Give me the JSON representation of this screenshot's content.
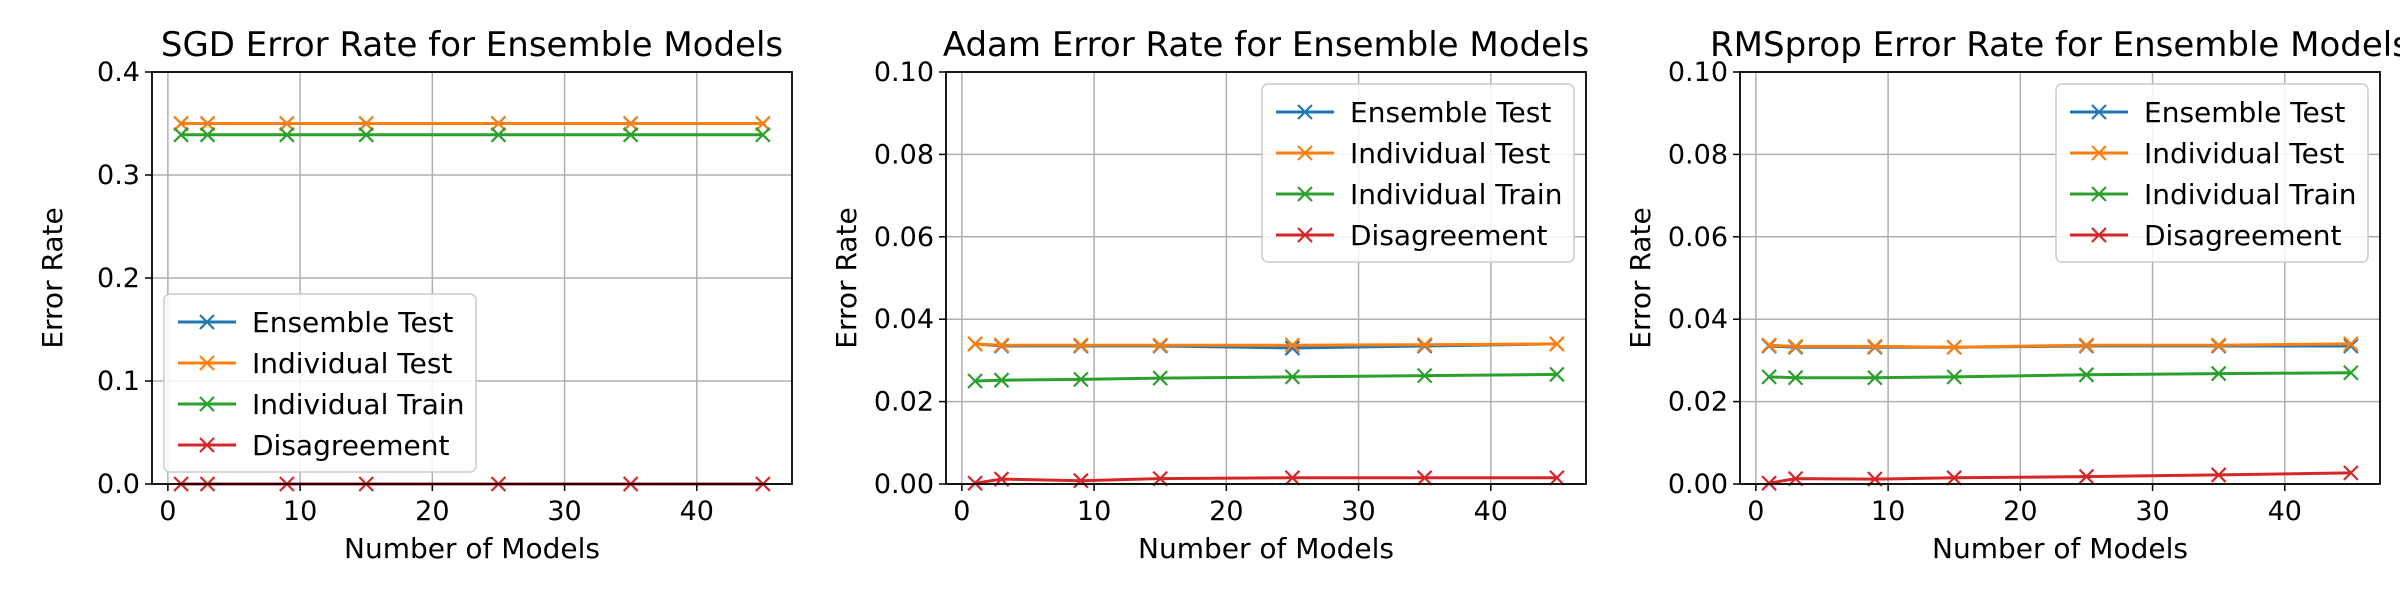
{
  "chart_data": [
    {
      "type": "line",
      "title": "SGD Error Rate for Ensemble Models",
      "xlabel": "Number of Models",
      "ylabel": "Error Rate",
      "xlim": [
        -1.2,
        47.2
      ],
      "ylim": [
        0,
        0.4
      ],
      "xticks": [
        "0",
        "10",
        "20",
        "30",
        "40"
      ],
      "yticks": [
        "0.0",
        "0.1",
        "0.2",
        "0.3",
        "0.4"
      ],
      "grid": true,
      "legend_position": "lower-left",
      "x": [
        1,
        3,
        9,
        15,
        25,
        35,
        45
      ],
      "series": [
        {
          "name": "Ensemble Test",
          "color": "#1f77b4",
          "values": [
            0.35,
            0.35,
            0.35,
            0.35,
            0.35,
            0.35,
            0.35
          ]
        },
        {
          "name": "Individual Test",
          "color": "#ff7f0e",
          "values": [
            0.35,
            0.35,
            0.35,
            0.35,
            0.35,
            0.35,
            0.35
          ]
        },
        {
          "name": "Individual Train",
          "color": "#2ca02c",
          "values": [
            0.339,
            0.339,
            0.339,
            0.339,
            0.339,
            0.339,
            0.339
          ]
        },
        {
          "name": "Disagreement",
          "color": "#d62728",
          "values": [
            0,
            0,
            0,
            0,
            0,
            0,
            0
          ]
        }
      ]
    },
    {
      "type": "line",
      "title": "Adam Error Rate for Ensemble Models",
      "xlabel": "Number of Models",
      "ylabel": "Error Rate",
      "xlim": [
        -1.2,
        47.2
      ],
      "ylim": [
        0,
        0.1
      ],
      "xticks": [
        "0",
        "10",
        "20",
        "30",
        "40"
      ],
      "yticks": [
        "0.00",
        "0.02",
        "0.04",
        "0.06",
        "0.08",
        "0.10"
      ],
      "grid": true,
      "legend_position": "upper-right",
      "x": [
        1,
        3,
        9,
        15,
        25,
        35,
        45
      ],
      "series": [
        {
          "name": "Ensemble Test",
          "color": "#1f77b4",
          "values": [
            0.034,
            0.0335,
            0.0335,
            0.0335,
            0.033,
            0.0335,
            0.034
          ]
        },
        {
          "name": "Individual Test",
          "color": "#ff7f0e",
          "values": [
            0.034,
            0.0337,
            0.0337,
            0.0337,
            0.0337,
            0.0338,
            0.034
          ]
        },
        {
          "name": "Individual Train",
          "color": "#2ca02c",
          "values": [
            0.025,
            0.0252,
            0.0254,
            0.0257,
            0.026,
            0.0263,
            0.0266
          ]
        },
        {
          "name": "Disagreement",
          "color": "#d62728",
          "values": [
            0.0002,
            0.0012,
            0.0008,
            0.0013,
            0.0015,
            0.0015,
            0.0015
          ]
        }
      ]
    },
    {
      "type": "line",
      "title": "RMSprop Error Rate for Ensemble Models",
      "xlabel": "Number of Models",
      "ylabel": "Error Rate",
      "xlim": [
        -1.2,
        47.2
      ],
      "ylim": [
        0,
        0.1
      ],
      "xticks": [
        "0",
        "10",
        "20",
        "30",
        "40"
      ],
      "yticks": [
        "0.00",
        "0.02",
        "0.04",
        "0.06",
        "0.08",
        "0.10"
      ],
      "grid": true,
      "legend_position": "upper-right",
      "x": [
        1,
        3,
        9,
        15,
        25,
        35,
        45
      ],
      "series": [
        {
          "name": "Ensemble Test",
          "color": "#1f77b4",
          "values": [
            0.0335,
            0.0332,
            0.0332,
            0.0332,
            0.0335,
            0.0335,
            0.0335
          ]
        },
        {
          "name": "Individual Test",
          "color": "#ff7f0e",
          "values": [
            0.0337,
            0.0334,
            0.0334,
            0.0332,
            0.0337,
            0.0337,
            0.034
          ]
        },
        {
          "name": "Individual Train",
          "color": "#2ca02c",
          "values": [
            0.026,
            0.0258,
            0.0258,
            0.026,
            0.0265,
            0.0268,
            0.027
          ]
        },
        {
          "name": "Disagreement",
          "color": "#d62728",
          "values": [
            0.0002,
            0.0013,
            0.0012,
            0.0015,
            0.0018,
            0.0022,
            0.0027
          ]
        }
      ]
    }
  ]
}
